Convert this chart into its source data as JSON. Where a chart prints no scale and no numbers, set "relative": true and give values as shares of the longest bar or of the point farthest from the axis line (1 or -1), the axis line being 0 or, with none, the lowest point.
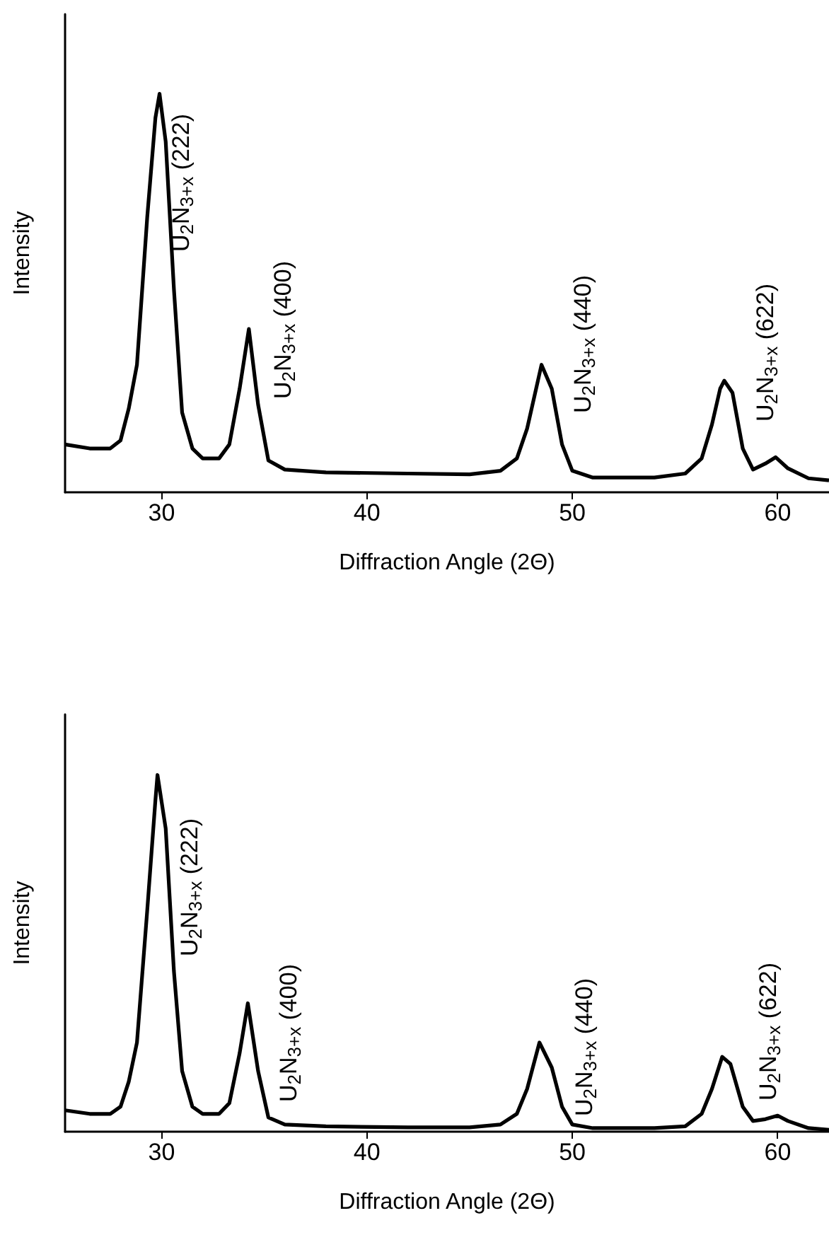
{
  "chart_data": [
    {
      "type": "line",
      "relative": true,
      "xlabel": "Diffraction Angle (2Θ)",
      "ylabel": "Intensity",
      "xlim": [
        25.3,
        62.5
      ],
      "xticks": [
        30,
        40,
        50,
        60
      ],
      "grid": false,
      "marker": "none",
      "line_style": "solid",
      "x": [
        25.3,
        26.5,
        27.5,
        28.0,
        28.4,
        28.8,
        29.3,
        29.7,
        29.9,
        30.2,
        30.6,
        31.0,
        31.5,
        32.0,
        32.8,
        33.3,
        33.8,
        34.25,
        34.7,
        35.2,
        36.0,
        38,
        42,
        45,
        46.5,
        47.3,
        47.8,
        48.5,
        49.0,
        49.5,
        50.0,
        51,
        54,
        55.5,
        56.3,
        56.8,
        57.2,
        57.4,
        57.8,
        58.3,
        58.8,
        59.4,
        59.9,
        60.5,
        61.5,
        62.5
      ],
      "series": [
        {
          "color": "#000000",
          "values": [
            0.12,
            0.11,
            0.11,
            0.13,
            0.21,
            0.32,
            0.69,
            0.94,
            1.0,
            0.88,
            0.51,
            0.2,
            0.11,
            0.085,
            0.085,
            0.12,
            0.26,
            0.41,
            0.22,
            0.08,
            0.057,
            0.05,
            0.047,
            0.045,
            0.054,
            0.085,
            0.16,
            0.32,
            0.26,
            0.12,
            0.054,
            0.037,
            0.037,
            0.047,
            0.085,
            0.17,
            0.26,
            0.28,
            0.25,
            0.11,
            0.057,
            0.072,
            0.088,
            0.06,
            0.035,
            0.03
          ]
        }
      ],
      "annotations": [
        "U$_{2}$N$_{3+x}$ (222)",
        "U$_{2}$N$_{3+x}$ (400)",
        "U$_{2}$N$_{3+x}$ (440)",
        "U$_{2}$N$_{3+x}$ (622)"
      ]
    },
    {
      "type": "line",
      "relative": true,
      "xlabel": "Diffraction Angle (2Θ)",
      "ylabel": "Intensity",
      "xlim": [
        25.3,
        62.5
      ],
      "xticks": [
        30,
        40,
        50,
        60
      ],
      "grid": false,
      "marker": "none",
      "line_style": "solid",
      "x": [
        25.3,
        26.5,
        27.5,
        28.0,
        28.4,
        28.8,
        29.3,
        29.7,
        29.8,
        30.2,
        30.6,
        31.0,
        31.5,
        32.0,
        32.8,
        33.3,
        33.8,
        34.2,
        34.7,
        35.2,
        36,
        38,
        42,
        45,
        46.5,
        47.3,
        47.8,
        48.4,
        49.0,
        49.5,
        50,
        51,
        54,
        55.5,
        56.3,
        56.8,
        57.3,
        57.7,
        58.3,
        58.8,
        59.4,
        60,
        60.5,
        61.5,
        62.5
      ],
      "series": [
        {
          "color": "#000000",
          "values": [
            0.06,
            0.05,
            0.05,
            0.07,
            0.14,
            0.25,
            0.62,
            0.93,
            1.0,
            0.85,
            0.45,
            0.17,
            0.07,
            0.05,
            0.05,
            0.08,
            0.22,
            0.36,
            0.17,
            0.04,
            0.02,
            0.015,
            0.012,
            0.012,
            0.02,
            0.05,
            0.12,
            0.25,
            0.18,
            0.07,
            0.02,
            0.01,
            0.01,
            0.015,
            0.05,
            0.12,
            0.21,
            0.19,
            0.07,
            0.03,
            0.035,
            0.045,
            0.03,
            0.01,
            0.005
          ]
        }
      ],
      "annotations": [
        "U$_{2}$N$_{3+x}$ (222)",
        "U$_{2}$N$_{3+x}$ (400)",
        "U$_{2}$N$_{3+x}$ (440)",
        "U$_{2}$N$_{3+x}$ (622)"
      ]
    }
  ]
}
